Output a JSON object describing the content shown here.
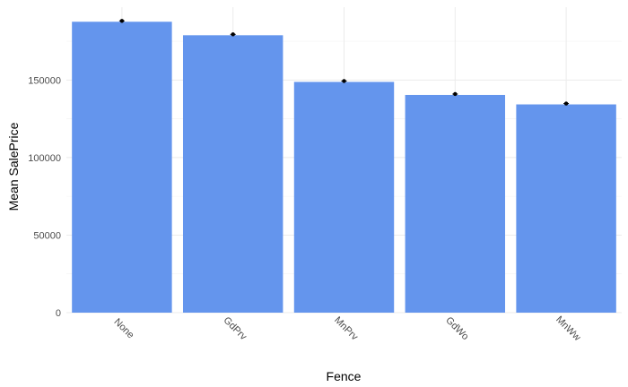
{
  "chart_data": {
    "type": "bar",
    "title": "",
    "xlabel": "Fence",
    "ylabel": "Mean SalePrice",
    "categories": [
      "None",
      "GdPrv",
      "MnPrv",
      "GdWo",
      "MnWw"
    ],
    "values": [
      187600,
      178900,
      148800,
      140400,
      134300
    ],
    "ylim": [
      0,
      197000
    ],
    "yticks": [
      0,
      50000,
      100000,
      150000
    ],
    "ytick_labels": [
      "0",
      "50000",
      "100000",
      "150000"
    ],
    "grid": true,
    "legend": "none",
    "error_markers": true,
    "colors": {
      "bar": "#6495ed",
      "marker": "#000000"
    }
  }
}
